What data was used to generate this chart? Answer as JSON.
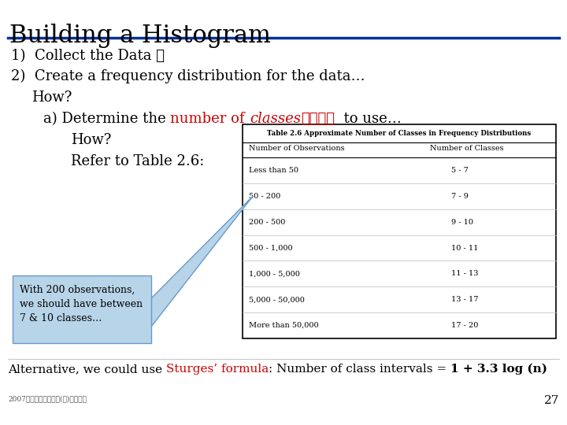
{
  "title": "Building a Histogram",
  "title_fontsize": 22,
  "title_color": "#000000",
  "bg_color": "#ffffff",
  "line_color": "#003399",
  "bullet1": "1)  Collect the Data ✓",
  "bullet2": "2)  Create a frequency distribution for the data…",
  "table_title": "Table 2.6 Approximate Number of Classes in Frequency Distributions",
  "col1_header": "Number of Observations",
  "col2_header": "Number of Classes",
  "table_rows": [
    [
      "Less than 50",
      "5 - 7"
    ],
    [
      "50 - 200",
      "7 - 9"
    ],
    [
      "200 - 500",
      "9 - 10"
    ],
    [
      "500 - 1,000",
      "10 - 11"
    ],
    [
      "1,000 - 5,000",
      "11 - 13"
    ],
    [
      "5,000 - 50,000",
      "13 - 17"
    ],
    [
      "More than 50,000",
      "17 - 20"
    ]
  ],
  "callout_text": "With 200 observations,\nwe should have between\n7 & 10 classes…",
  "callout_bg": "#b8d4e8",
  "callout_border": "#6699cc",
  "footer_text": "2007年管理科学研究法(一)基礎概念",
  "page_num": "27",
  "red_color": "#cc0000",
  "black_color": "#000000",
  "table_border_color": "#000000",
  "table_bg": "#ffffff"
}
